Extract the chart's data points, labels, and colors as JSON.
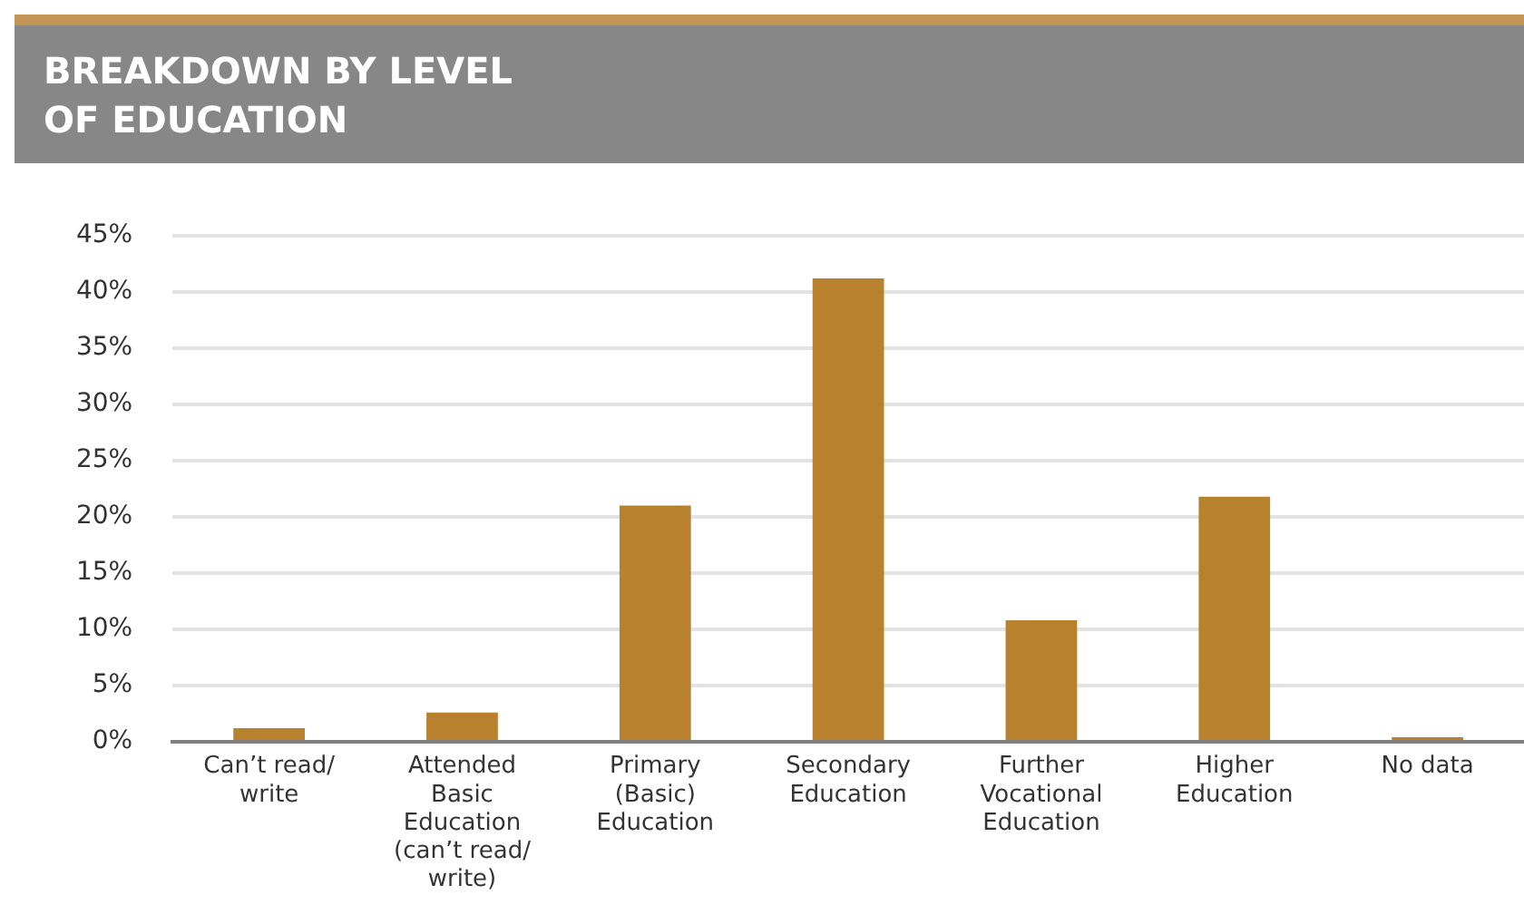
{
  "chart_data": {
    "type": "bar",
    "title": "BREAKDOWN BY LEVEL OF EDUCATION",
    "categories": [
      "Can’t read/ write",
      "Attended Basic Education (can’t read/ write)",
      "Primary (Basic) Education",
      "Secondary Education",
      "Further Vocational Education",
      "Higher Education",
      "No data"
    ],
    "values": [
      1.2,
      2.6,
      21.0,
      41.2,
      10.8,
      21.8,
      0.4
    ],
    "color": "#b8812d",
    "ylim": [
      0,
      45
    ],
    "yticks": [
      {
        "value": 0,
        "label": "0%"
      },
      {
        "value": 5,
        "label": "5%"
      },
      {
        "value": 10,
        "label": "10%"
      },
      {
        "value": 15,
        "label": "15%"
      },
      {
        "value": 20,
        "label": "20%"
      },
      {
        "value": 25,
        "label": "25%"
      },
      {
        "value": 30,
        "label": "30%"
      },
      {
        "value": 35,
        "label": "35%"
      },
      {
        "value": 40,
        "label": "40%"
      },
      {
        "value": 45,
        "label": "45%"
      }
    ],
    "grid": "y",
    "legend": false
  }
}
